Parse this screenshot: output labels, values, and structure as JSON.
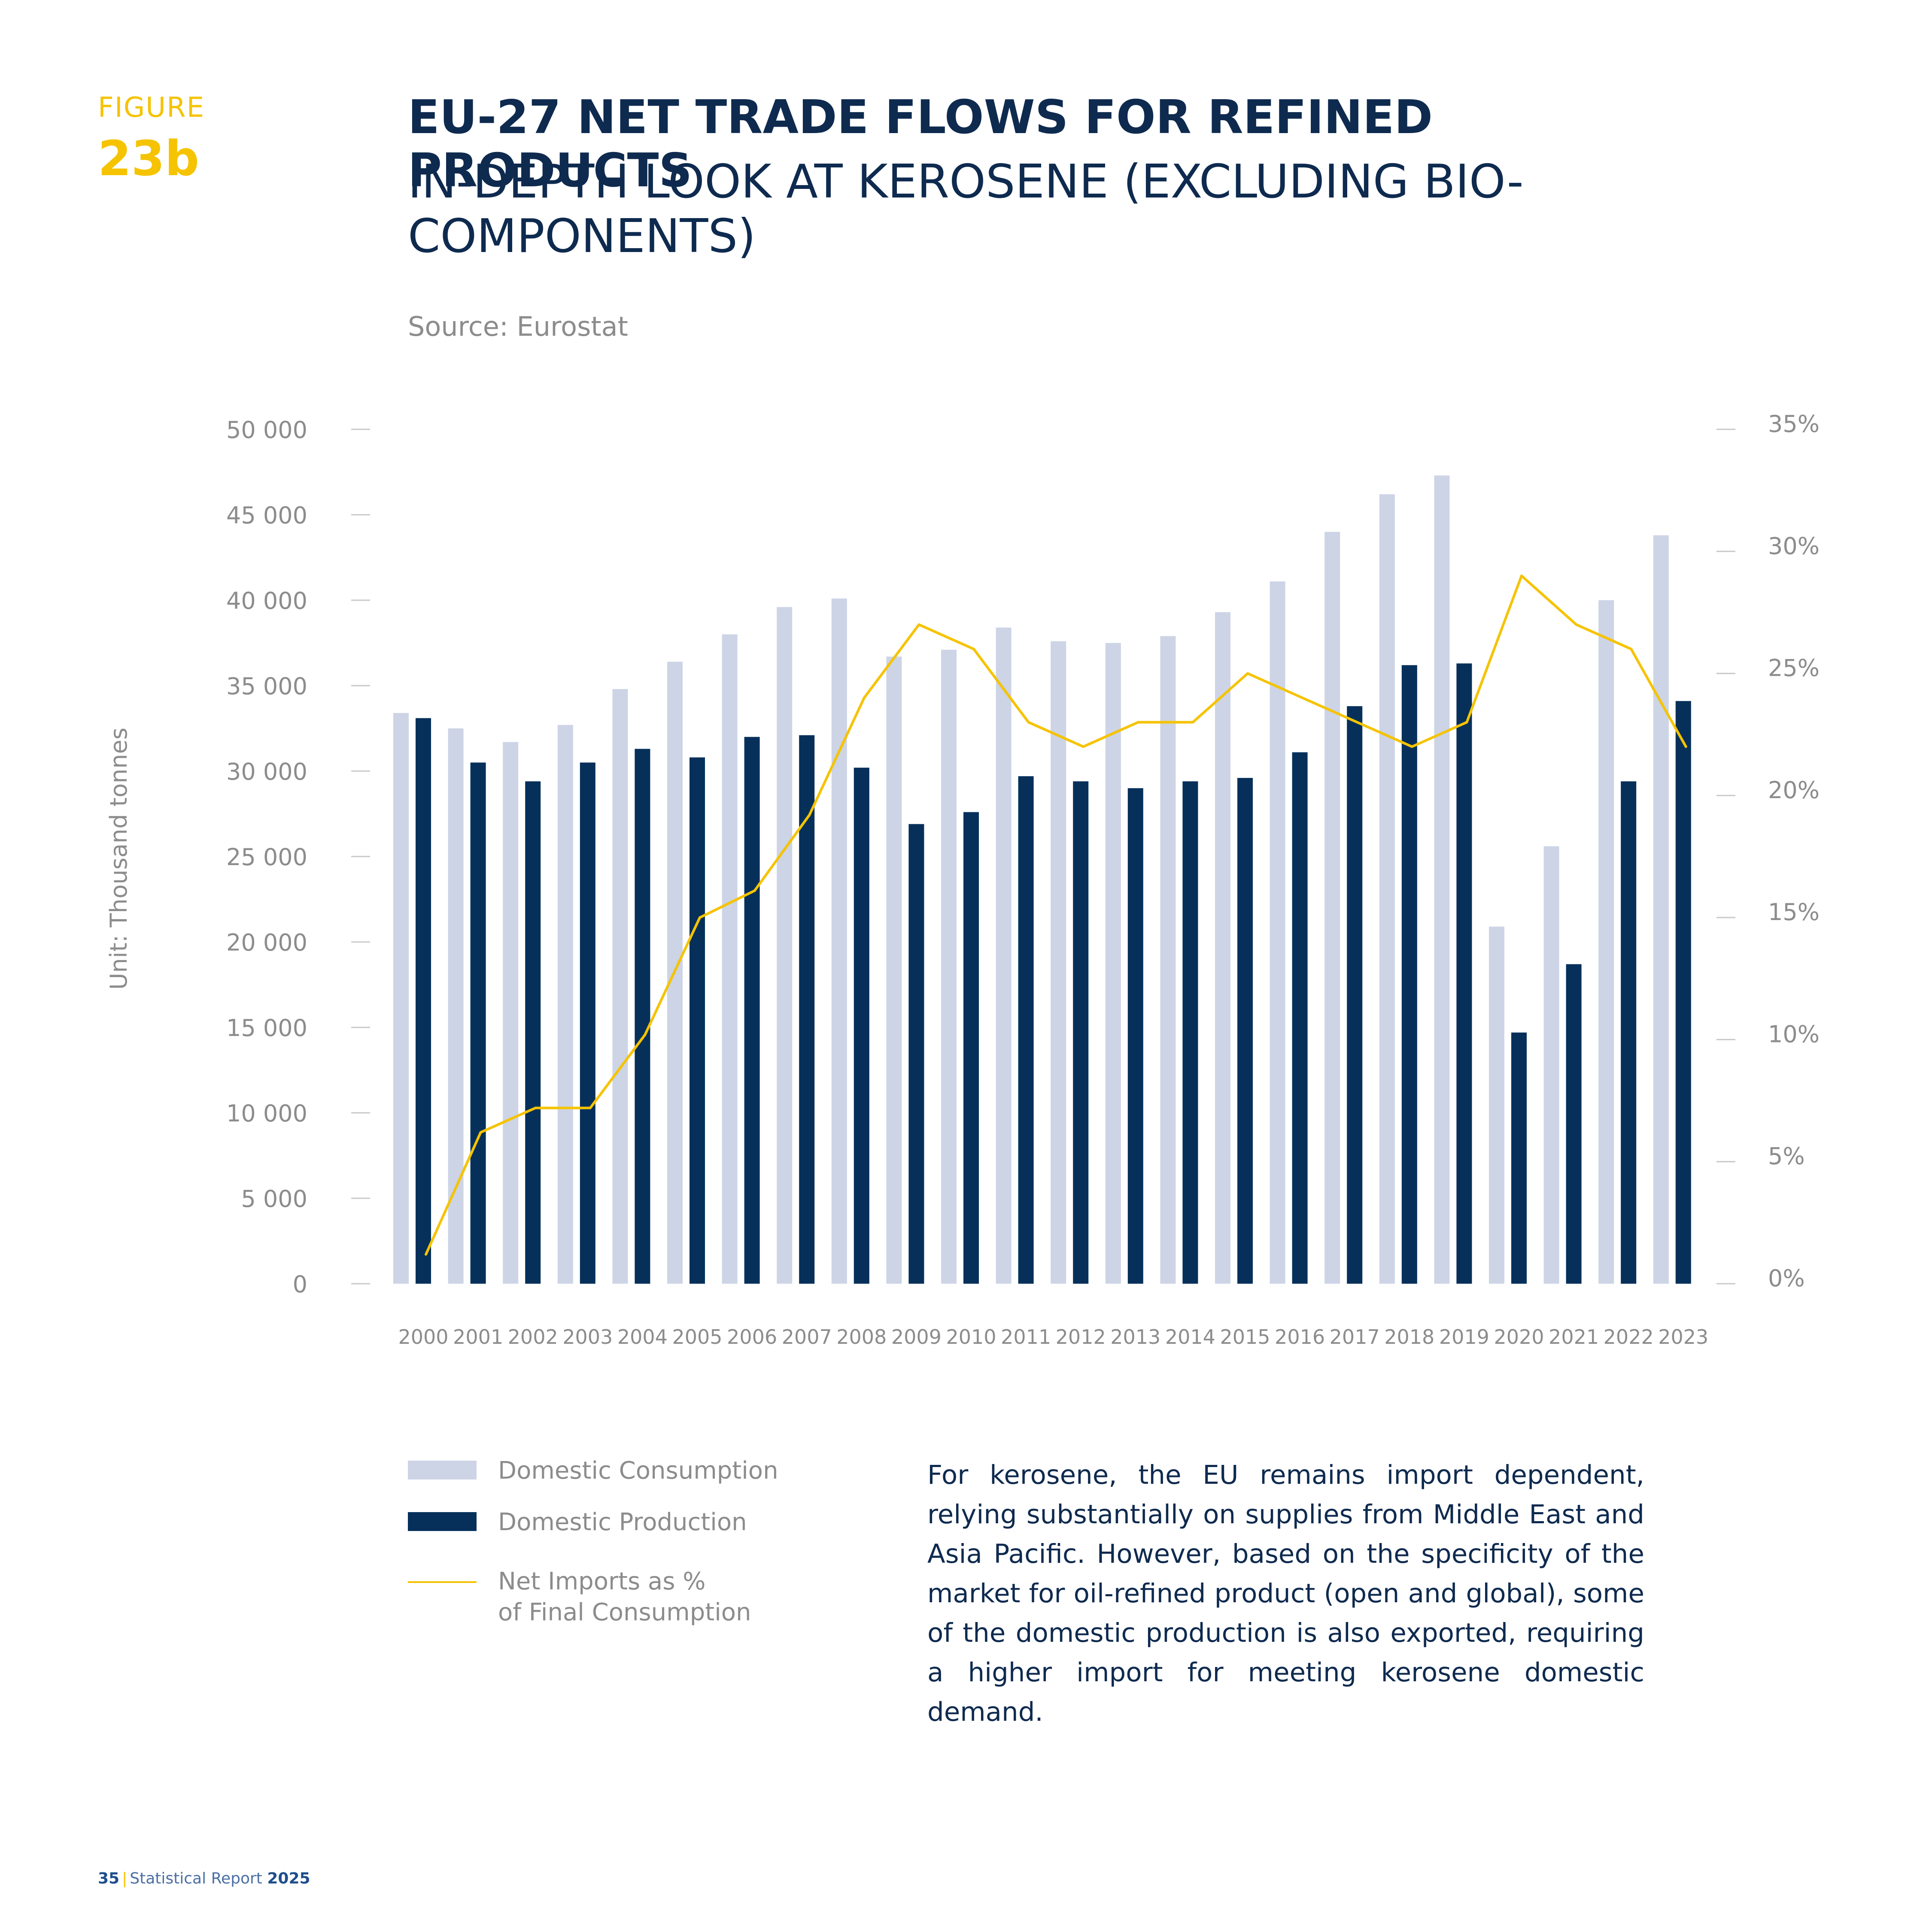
{
  "figure": {
    "label": "FIGURE",
    "number": "23b"
  },
  "title": "EU-27 NET TRADE FLOWS FOR REFINED PRODUCTS",
  "subtitle": "IN-DEPTH LOOK AT KEROSENE (EXCLUDING BIO-COMPONENTS)",
  "source": "Source: Eurostat",
  "colors": {
    "consumption": "#CDD4E6",
    "production": "#06305A",
    "net_imports": "#F5C300",
    "accent": "#F5C300",
    "navy": "#0E2A4F"
  },
  "chart_data": {
    "type": "bar",
    "categories": [
      "2000",
      "2001",
      "2002",
      "2003",
      "2004",
      "2005",
      "2006",
      "2007",
      "2008",
      "2009",
      "2010",
      "2011",
      "2012",
      "2013",
      "2014",
      "2015",
      "2016",
      "2017",
      "2018",
      "2019",
      "2020",
      "2021",
      "2022",
      "2023"
    ],
    "series": [
      {
        "name": "Domestic Consumption",
        "type": "bar",
        "axis": "left",
        "values": [
          33400,
          32500,
          31700,
          32700,
          34800,
          36400,
          38000,
          39600,
          40100,
          36700,
          37100,
          38400,
          37600,
          37500,
          37900,
          39300,
          41100,
          44000,
          46200,
          47300,
          20900,
          25600,
          40000,
          43800
        ]
      },
      {
        "name": "Domestic Production",
        "type": "bar",
        "axis": "left",
        "values": [
          33100,
          30500,
          29400,
          30500,
          31300,
          30800,
          32000,
          32100,
          30200,
          26900,
          27600,
          29700,
          29400,
          29000,
          29400,
          29600,
          31100,
          33800,
          36200,
          36300,
          14700,
          18700,
          29400,
          34100
        ]
      },
      {
        "name": "Net Imports as % of Final Consumption",
        "type": "line",
        "axis": "right",
        "values": [
          1.2,
          6.2,
          7.2,
          7.2,
          10.2,
          15.0,
          16.1,
          19.2,
          24.0,
          27.0,
          26.0,
          23.0,
          22.0,
          23.0,
          23.0,
          25.0,
          24.0,
          23.0,
          22.0,
          23.0,
          29.0,
          27.0,
          26.0,
          22.0
        ]
      }
    ],
    "ylabel": "Unit: Thousand tonnes",
    "ylim": [
      0,
      50000
    ],
    "yticks": [
      "0",
      "5 000",
      "10 000",
      "15 000",
      "20 000",
      "25 000",
      "30 000",
      "35 000",
      "40 000",
      "45 000",
      "50 000"
    ],
    "y2lim": [
      0,
      35
    ],
    "y2ticks": [
      "0%",
      "5%",
      "10%",
      "15%",
      "20%",
      "25%",
      "30%",
      "35%"
    ],
    "grid": false,
    "legend": "bottom-left"
  },
  "legend": {
    "items": [
      {
        "label": "Domestic Consumption"
      },
      {
        "label": "Domestic Production"
      },
      {
        "label_line1": "Net Imports as %",
        "label_line2": "of Final Consumption"
      }
    ]
  },
  "body_text": "For kerosene, the EU remains import dependent, relying substantially on supplies from Middle East and Asia Pacific. However, based on the specificity of the market for oil-refined product (open and global), some of the domestic production is also exported, requiring a higher import for meeting kerosene domestic demand.",
  "footer": {
    "page": "35",
    "report": "Statistical Report",
    "year": "2025"
  }
}
